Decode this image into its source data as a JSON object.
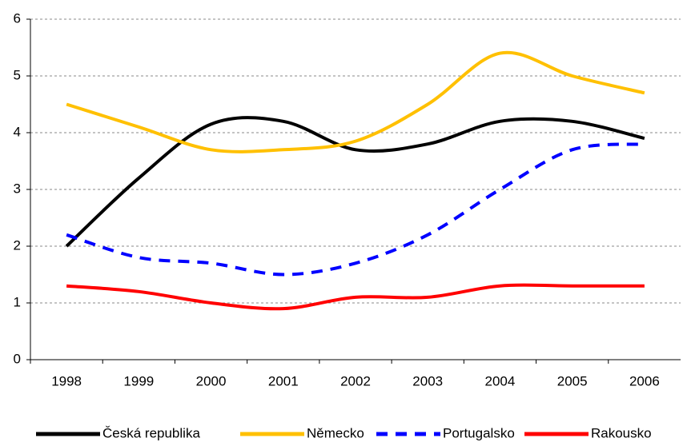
{
  "chart_data": {
    "type": "line",
    "smooth": true,
    "grid": true,
    "categories": [
      "1998",
      "1999",
      "2000",
      "2001",
      "2002",
      "2003",
      "2004",
      "2005",
      "2006"
    ],
    "ylim": [
      0,
      6
    ],
    "yticks": [
      0,
      1,
      2,
      3,
      4,
      5,
      6
    ],
    "series": [
      {
        "name": "Česká republika",
        "color": "#000000",
        "line_style": "solid",
        "values": [
          2.0,
          3.2,
          4.15,
          4.2,
          3.7,
          3.8,
          4.2,
          4.2,
          3.9
        ]
      },
      {
        "name": "Německo",
        "color": "#ffc000",
        "line_style": "solid",
        "values": [
          4.5,
          4.1,
          3.7,
          3.7,
          3.85,
          4.5,
          5.4,
          5.0,
          4.7
        ]
      },
      {
        "name": "Portugalsko",
        "color": "#0000ff",
        "line_style": "dashed",
        "values": [
          2.2,
          1.8,
          1.7,
          1.5,
          1.7,
          2.2,
          3.0,
          3.7,
          3.8
        ]
      },
      {
        "name": "Rakousko",
        "color": "#ff0000",
        "line_style": "solid",
        "values": [
          1.3,
          1.2,
          1.0,
          0.9,
          1.1,
          1.1,
          1.3,
          1.3,
          1.3
        ]
      }
    ]
  }
}
